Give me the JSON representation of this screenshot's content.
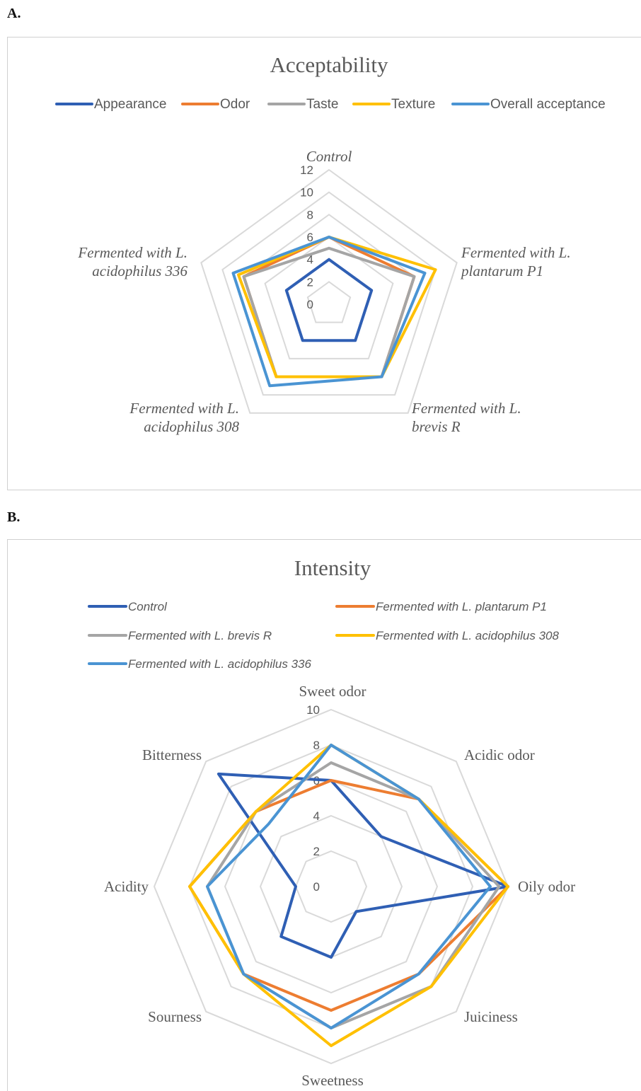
{
  "panels": {
    "a_label": "A.",
    "b_label": "B."
  },
  "chart_data": [
    {
      "type": "radar",
      "title": "Acceptability",
      "categories": [
        "Control",
        "Fermented with L. plantarum P1",
        "Fermented with L. brevis R",
        "Fermented with L. acidophilus 308",
        "Fermented with L. acidophilus 336"
      ],
      "category_lines": [
        [
          "Control"
        ],
        [
          "Fermented with L.",
          "plantarum P1"
        ],
        [
          "Fermented with L.",
          "brevis R"
        ],
        [
          "Fermented with L.",
          "acidophilus 308"
        ],
        [
          "Fermented with L.",
          "acidophilus 336"
        ]
      ],
      "rmax": 12,
      "ticks": [
        0,
        2,
        4,
        6,
        8,
        10,
        12
      ],
      "italic_categories": true,
      "legend_position": "top",
      "series": [
        {
          "name": "Appearance",
          "color": "#2f5fb4",
          "values": [
            4,
            4,
            4,
            4,
            4
          ]
        },
        {
          "name": "Odor",
          "color": "#ed7d31",
          "values": [
            6,
            8,
            8,
            8,
            8
          ]
        },
        {
          "name": "Taste",
          "color": "#a5a5a5",
          "values": [
            5,
            8,
            8,
            8,
            8
          ]
        },
        {
          "name": "Texture",
          "color": "#ffc000",
          "values": [
            6,
            10,
            8,
            8,
            8.5
          ]
        },
        {
          "name": "Overall acceptance",
          "color": "#4a94d3",
          "values": [
            6,
            9,
            8,
            9,
            9
          ]
        }
      ]
    },
    {
      "type": "radar",
      "title": "Intensity",
      "categories": [
        "Sweet odor",
        "Acidic odor",
        "Oily odor",
        "Juiciness",
        "Sweetness",
        "Sourness",
        "Acidity",
        "Bitterness"
      ],
      "category_lines": [
        [
          "Sweet odor"
        ],
        [
          "Acidic odor"
        ],
        [
          "Oily odor"
        ],
        [
          "Juiciness"
        ],
        [
          "Sweetness"
        ],
        [
          "Sourness"
        ],
        [
          "Acidity"
        ],
        [
          "Bitterness"
        ]
      ],
      "rmax": 10,
      "ticks": [
        0,
        2,
        4,
        6,
        8,
        10
      ],
      "italic_categories": false,
      "legend_position": "top",
      "series": [
        {
          "name": "Control",
          "color": "#2f5fb4",
          "values": [
            6,
            4,
            10,
            2,
            4,
            4,
            2,
            9
          ]
        },
        {
          "name": "Fermented with L. plantarum P1",
          "color": "#ed7d31",
          "values": [
            6,
            7,
            10,
            7,
            7,
            7,
            8,
            6
          ]
        },
        {
          "name": "Fermented with L. brevis R",
          "color": "#a5a5a5",
          "values": [
            7,
            7,
            9.5,
            8,
            8,
            7,
            7,
            6
          ]
        },
        {
          "name": "Fermented with L. acidophilus 308",
          "color": "#ffc000",
          "values": [
            8,
            7,
            10,
            8,
            9,
            7,
            8,
            6
          ]
        },
        {
          "name": "Fermented with L. acidophilus 336",
          "color": "#4a94d3",
          "values": [
            8,
            7,
            9,
            7,
            8,
            7,
            7,
            5
          ]
        }
      ]
    }
  ]
}
